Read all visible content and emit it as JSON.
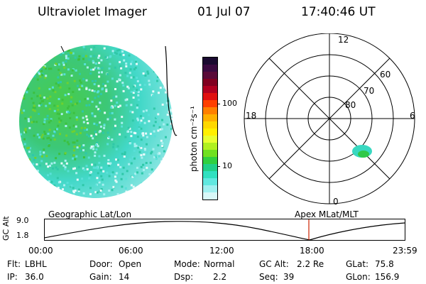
{
  "header": {
    "instrument": "Ultraviolet Imager",
    "date": "01 Jul 07",
    "time": "17:40:46 UT"
  },
  "colorbar": {
    "unit_label": "photon cm⁻²s⁻¹",
    "ticks": [
      "100",
      "10"
    ],
    "colors": [
      "#1a0a30",
      "#3a0a40",
      "#5a0a38",
      "#800020",
      "#b00020",
      "#e01010",
      "#ff4000",
      "#ff8000",
      "#ffb000",
      "#ffd800",
      "#fff000",
      "#e8ff30",
      "#b0f020",
      "#70e020",
      "#30d040",
      "#20d088",
      "#30e0c0",
      "#60e8e0",
      "#a0f0f0",
      "#d8f8f8"
    ]
  },
  "polar": {
    "mlt_labels": {
      "top": "12",
      "left": "18",
      "right": "6",
      "bottom": "0"
    },
    "lat_labels": [
      "60",
      "70",
      "80"
    ]
  },
  "panel_labels": {
    "left": "Geographic Lat/Lon",
    "right": "Apex MLat/MLT"
  },
  "altitude_plot": {
    "axis_label": "GC Alt",
    "y_ticks": [
      "9.0",
      "1.8"
    ],
    "x_ticks": [
      "00:00",
      "06:00",
      "12:00",
      "18:00",
      "23:59"
    ],
    "marker_color": "#cc2200"
  },
  "info": {
    "flt_label": "Flt:",
    "flt_value": "LBHL",
    "ip_label": "IP:",
    "ip_value": "36.0",
    "door_label": "Door:",
    "door_value": "Open",
    "gain_label": "Gain:",
    "gain_value": "14",
    "mode_label": "Mode:",
    "mode_value": "Normal",
    "dsp_label": "Dsp:",
    "dsp_value": "2.2",
    "gcalt_label": "GC Alt:",
    "gcalt_value": "2.2 Re",
    "seq_label": "Seq:",
    "seq_value": "39",
    "glat_label": "GLat:",
    "glat_value": "75.8",
    "glon_label": "GLon:",
    "glon_value": "156.9"
  }
}
